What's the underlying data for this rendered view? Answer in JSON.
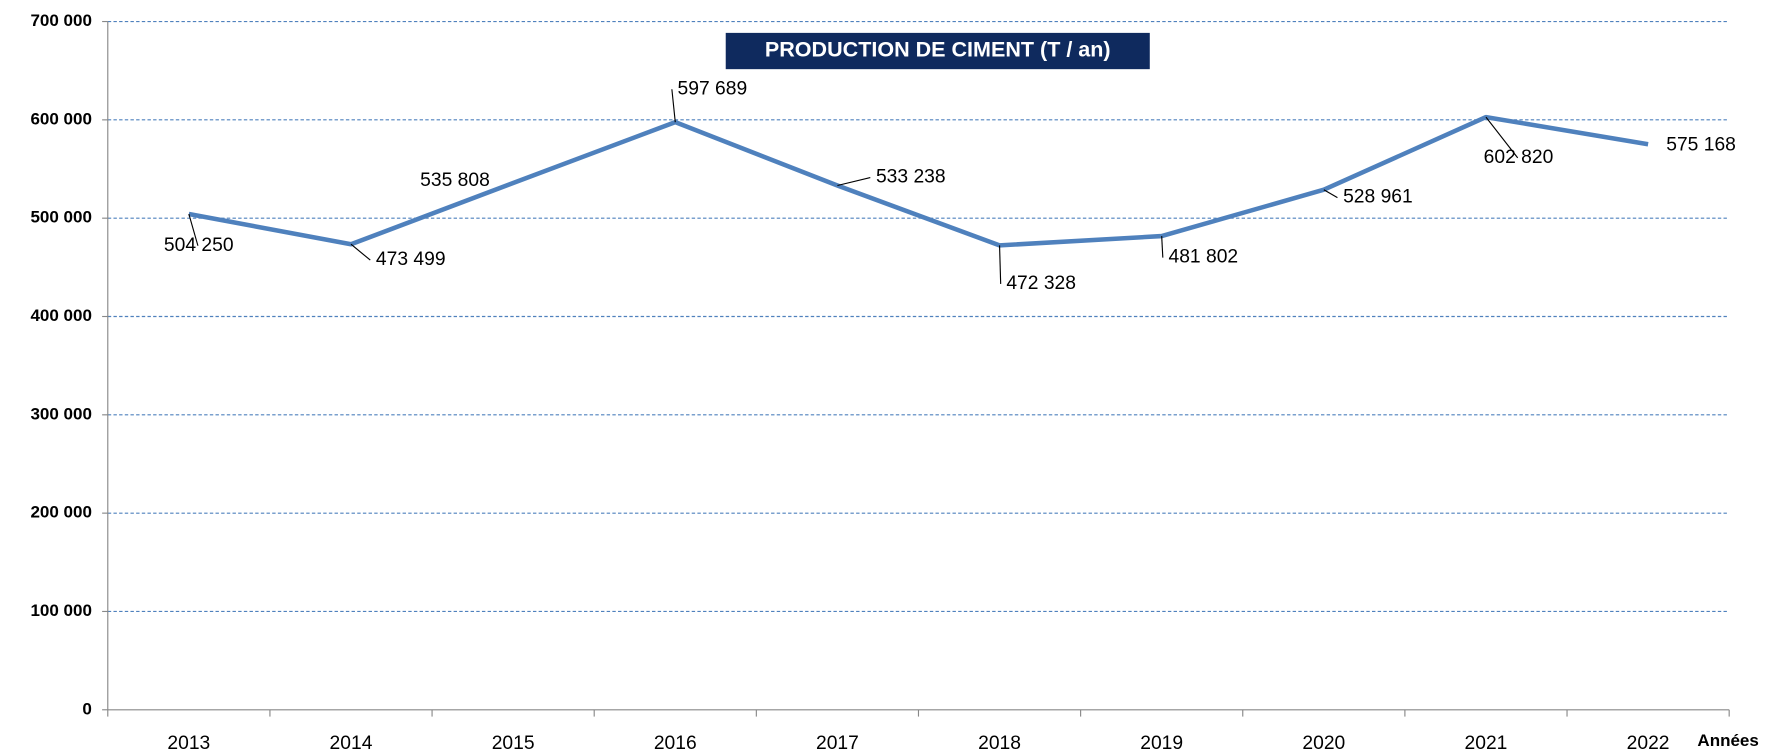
{
  "chart_data": {
    "type": "line",
    "title": "PRODUCTION DE CIMENT (T / an)",
    "x_label": "Années",
    "categories": [
      "2013",
      "2014",
      "2015",
      "2016",
      "2017",
      "2018",
      "2019",
      "2020",
      "2021",
      "2022"
    ],
    "series": [
      {
        "name": "Production de ciment",
        "color": "#4f81bd",
        "values": [
          504250,
          473499,
          535808,
          597689,
          533238,
          472328,
          481802,
          528961,
          602820,
          575168
        ],
        "value_labels": [
          "504 250",
          "473 499",
          "535 808",
          "597 689",
          "533 238",
          "472 328",
          "481 802",
          "528 961",
          "602 820",
          "575 168"
        ]
      }
    ],
    "ylim": [
      0,
      700000
    ],
    "yticks": [
      0,
      {
        "value": 100000,
        "label": "100 000"
      },
      {
        "value": 200000,
        "label": "200 000"
      },
      {
        "value": 300000,
        "label": "300 000"
      },
      {
        "value": 400000,
        "label": "400 000"
      },
      {
        "value": 500000,
        "label": "500 000"
      },
      {
        "value": 600000,
        "label": "600 000"
      },
      {
        "value": 700000,
        "label": "700 000"
      }
    ],
    "grid": true
  }
}
